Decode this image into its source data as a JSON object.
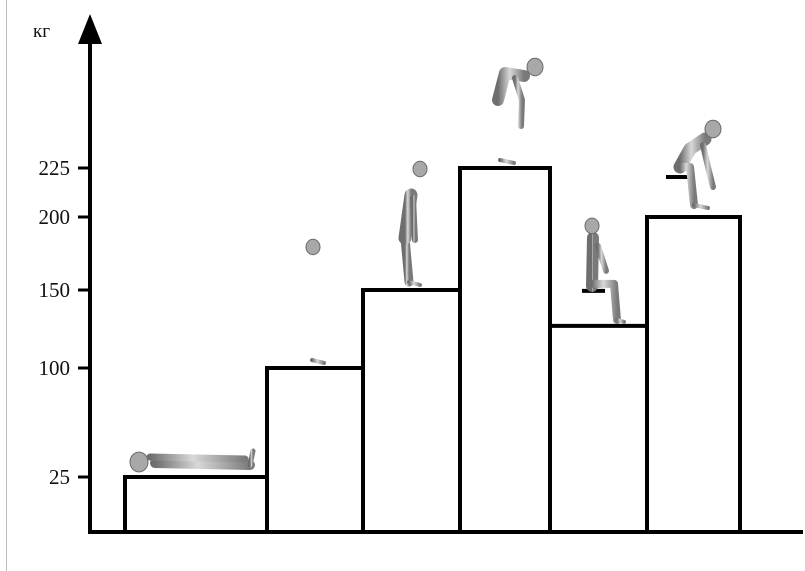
{
  "chart_data": {
    "type": "bar",
    "ylabel": "кг",
    "yticks": [
      25,
      100,
      150,
      200,
      225
    ],
    "values": [
      25,
      100,
      150,
      225,
      127,
      200
    ],
    "postures": [
      "lying",
      "standing",
      "standing-leaning-back",
      "bending-forward",
      "sitting-upright",
      "sitting-leaning-forward"
    ],
    "grid": false,
    "colors": {
      "bar_fill": "#ffffff",
      "bar_stroke": "#000000",
      "axis": "#000000",
      "figure": "#8c8c8c"
    }
  }
}
